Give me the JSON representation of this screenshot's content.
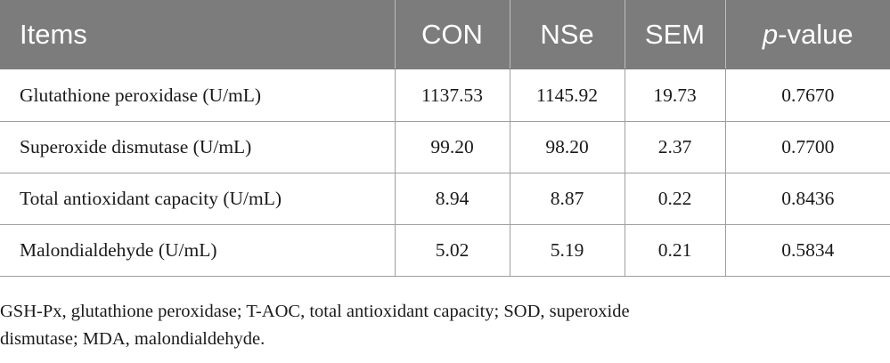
{
  "table": {
    "headers": {
      "items": "Items",
      "con": "CON",
      "nse": "NSe",
      "sem": "SEM",
      "p_italic": "p",
      "p_rest": "-value"
    },
    "rows": [
      {
        "item": "Glutathione peroxidase (U/mL)",
        "con": "1137.53",
        "nse": "1145.92",
        "sem": "19.73",
        "p": "0.7670"
      },
      {
        "item": "Superoxide dismutase (U/mL)",
        "con": "99.20",
        "nse": "98.20",
        "sem": "2.37",
        "p": "0.7700"
      },
      {
        "item": "Total antioxidant capacity (U/mL)",
        "con": "8.94",
        "nse": "8.87",
        "sem": "0.22",
        "p": "0.8436"
      },
      {
        "item": "Malondialdehyde (U/mL)",
        "con": "5.02",
        "nse": "5.19",
        "sem": "0.21",
        "p": "0.5834"
      }
    ]
  },
  "footnote": {
    "line1": "GSH-Px, glutathione peroxidase; T-AOC, total antioxidant capacity; SOD, superoxide",
    "line2": "dismutase; MDA, malondialdehyde."
  },
  "colors": {
    "header_bg": "#7c7c7c",
    "header_text": "#ffffff",
    "body_text": "#1a1a1a",
    "rule": "#9e9e9e"
  }
}
